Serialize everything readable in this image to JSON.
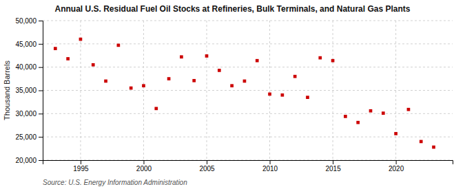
{
  "chart_data": {
    "type": "scatter",
    "title": "Annual U.S. Residual Fuel Oil Stocks at Refineries, Bulk Terminals, and Natural Gas Plants",
    "ylabel": "Thousand Barrels",
    "source": "Source: U.S. Energy Information Administration",
    "x": [
      1993,
      1994,
      1995,
      1996,
      1997,
      1998,
      1999,
      2000,
      2001,
      2002,
      2003,
      2004,
      2005,
      2006,
      2007,
      2008,
      2009,
      2010,
      2011,
      2012,
      2013,
      2014,
      2015,
      2016,
      2017,
      2018,
      2019,
      2020,
      2021,
      2022,
      2023
    ],
    "values": [
      44000,
      41800,
      46000,
      40500,
      37000,
      44700,
      35500,
      36000,
      31100,
      37500,
      42200,
      37100,
      42400,
      39300,
      36000,
      37000,
      41400,
      34200,
      34000,
      38000,
      33500,
      42000,
      41400,
      29400,
      28100,
      30600,
      30100,
      25700,
      30900,
      24000,
      22800
    ],
    "color": "#cc0000",
    "marker": "square",
    "xlim": [
      1992.0,
      2024.5
    ],
    "xticks": [
      1995,
      2000,
      2005,
      2010,
      2015,
      2020
    ],
    "ylim": [
      20000,
      50000
    ],
    "yticks": [
      {
        "value": 20000,
        "label": "20,000"
      },
      {
        "value": 25000,
        "label": "25,000"
      },
      {
        "value": 30000,
        "label": "30,000"
      },
      {
        "value": 35000,
        "label": "35,000"
      },
      {
        "value": 40000,
        "label": "40,000"
      },
      {
        "value": 45000,
        "label": "45,000"
      },
      {
        "value": 50000,
        "label": "50,000"
      }
    ],
    "grid": true
  }
}
